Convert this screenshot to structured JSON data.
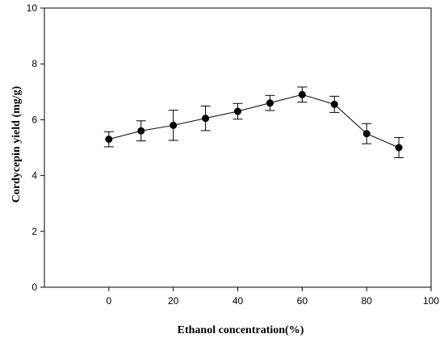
{
  "chart_data": {
    "type": "line",
    "title": "",
    "xlabel": "Ethanol concentration(%)",
    "ylabel": "Cordycepin  yield (mg/g)",
    "xlim": [
      -20,
      100
    ],
    "ylim": [
      0,
      10
    ],
    "xticks": [
      0,
      20,
      40,
      60,
      80,
      100
    ],
    "yticks": [
      0,
      2,
      4,
      6,
      8,
      10
    ],
    "grid": false,
    "legend": "none",
    "series": [
      {
        "x": [
          0,
          10,
          20,
          30,
          40,
          50,
          60,
          70,
          80,
          90
        ],
        "y": [
          5.3,
          5.6,
          5.8,
          6.05,
          6.3,
          6.6,
          6.9,
          6.55,
          5.5,
          5.0
        ],
        "error": [
          0.27,
          0.36,
          0.54,
          0.44,
          0.28,
          0.27,
          0.27,
          0.29,
          0.36,
          0.36
        ]
      }
    ],
    "colors": {
      "line": "#000000",
      "marker": "#000000"
    }
  }
}
